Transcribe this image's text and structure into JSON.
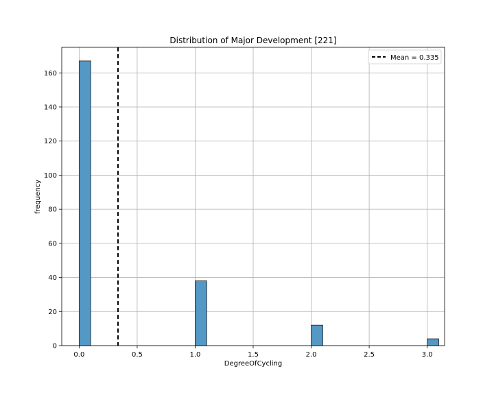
{
  "chart_data": {
    "type": "bar",
    "title": "Distribution of Major Development [221]",
    "xlabel": "DegreeOfCycling",
    "ylabel": "frequency",
    "bins": [
      {
        "x": 0.0,
        "count": 167
      },
      {
        "x": 1.0,
        "count": 38
      },
      {
        "x": 2.0,
        "count": 12
      },
      {
        "x": 3.0,
        "count": 4
      }
    ],
    "bin_width": 0.1,
    "xlim": [
      -0.15,
      3.15
    ],
    "ylim": [
      0,
      175
    ],
    "xticks": [
      0.0,
      0.5,
      1.0,
      1.5,
      2.0,
      2.5,
      3.0
    ],
    "xtick_labels": [
      "0.0",
      "0.5",
      "1.0",
      "1.5",
      "2.0",
      "2.5",
      "3.0"
    ],
    "yticks": [
      0,
      20,
      40,
      60,
      80,
      100,
      120,
      140,
      160
    ],
    "ytick_labels": [
      "0",
      "20",
      "40",
      "60",
      "80",
      "100",
      "120",
      "140",
      "160"
    ],
    "mean": 0.335,
    "legend": {
      "label": "Mean = 0.335",
      "placement": "upper right"
    },
    "grid": true,
    "colors": {
      "bar": "#5498c6",
      "bar_edge": "#1a1a1a",
      "mean_line": "#000000",
      "grid": "#b0b0b0"
    }
  }
}
